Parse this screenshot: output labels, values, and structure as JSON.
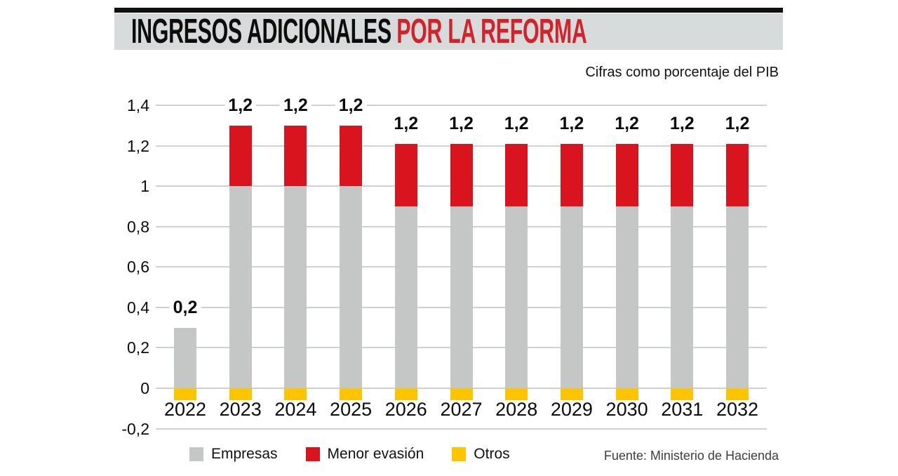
{
  "header": {
    "title_black": "INGRESOS ADICIONALES",
    "title_red": "POR LA REFORMA"
  },
  "subtitle": "Cifras como porcentaje del PIB",
  "source": "Fuente: Ministerio de Hacienda",
  "colors": {
    "title_red": "#d2232a",
    "header_band": "#d8dbdb",
    "bar_gray": "#c5c6c6",
    "bar_red": "#da141e",
    "bar_yellow": "#fdc400",
    "gridline": "#cdd2d4"
  },
  "legend": {
    "items": [
      {
        "label": "Empresas",
        "color": "#c5c6c6"
      },
      {
        "label": "Menor evasión",
        "color": "#da141e"
      },
      {
        "label": "Otros",
        "color": "#fdc400"
      }
    ]
  },
  "chart_data": {
    "type": "bar",
    "stacked": true,
    "title": "INGRESOS ADICIONALES POR LA REFORMA",
    "subtitle": "Cifras como porcentaje del PIB",
    "source": "Fuente: Ministerio de Hacienda",
    "categories": [
      "2022",
      "2023",
      "2024",
      "2025",
      "2026",
      "2027",
      "2028",
      "2029",
      "2030",
      "2031",
      "2032"
    ],
    "series": [
      {
        "name": "Empresas",
        "color": "#c5c6c6",
        "values": [
          0.3,
          1.0,
          1.0,
          1.0,
          0.9,
          0.9,
          0.9,
          0.9,
          0.9,
          0.9,
          0.9
        ]
      },
      {
        "name": "Menor evasión",
        "color": "#da141e",
        "values": [
          0,
          0.3,
          0.3,
          0.3,
          0.31,
          0.31,
          0.31,
          0.31,
          0.31,
          0.31,
          0.31
        ]
      },
      {
        "name": "Otros",
        "color": "#fdc400",
        "values": [
          -0.06,
          -0.06,
          -0.06,
          -0.06,
          -0.06,
          -0.06,
          -0.06,
          -0.06,
          -0.06,
          -0.06,
          -0.06
        ]
      }
    ],
    "bar_labels": [
      "0,2",
      "1,2",
      "1,2",
      "1,2",
      "1,2",
      "1,2",
      "1,2",
      "1,2",
      "1,2",
      "1,2",
      "1,2"
    ],
    "yticks": {
      "values": [
        1.4,
        1.2,
        1.0,
        0.8,
        0.6,
        0.4,
        0.2,
        0,
        -0.2
      ],
      "labels": [
        "1,4",
        "1,2",
        "1",
        "0,8",
        "0,6",
        "0,4",
        "0,2",
        "0",
        "-0,2"
      ]
    },
    "ylim": [
      -0.2,
      1.4
    ],
    "grid": true,
    "legend_position": "bottom"
  }
}
